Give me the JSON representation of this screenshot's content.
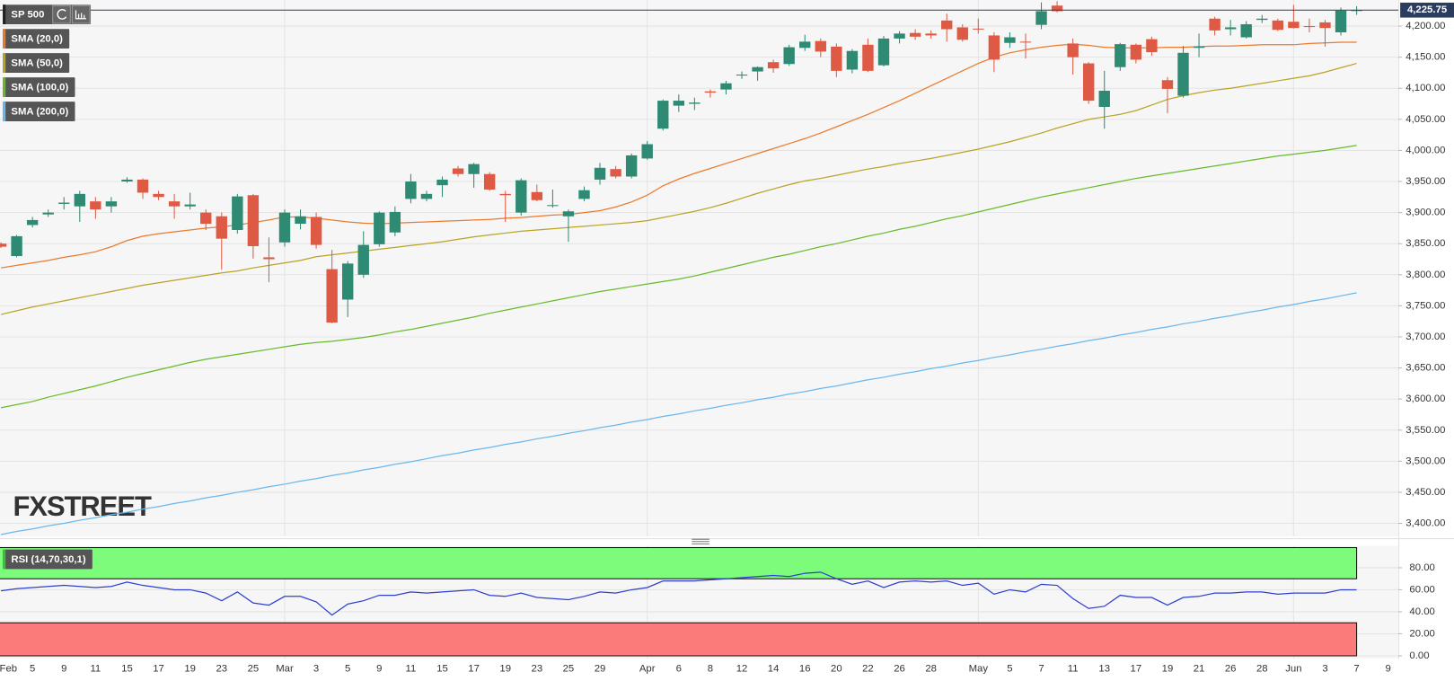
{
  "watermark": "FXSTREET",
  "chart_data": [
    {
      "type": "candlestick",
      "x": [
        "Feb",
        null,
        "5",
        null,
        "9",
        null,
        "11",
        null,
        "15",
        null,
        "17",
        null,
        "19",
        null,
        "23",
        null,
        "25",
        null,
        "Mar",
        null,
        "3",
        null,
        "5",
        null,
        "9",
        null,
        "11",
        null,
        "15",
        null,
        "17",
        null,
        "19",
        null,
        "23",
        null,
        "25",
        null,
        "29",
        null,
        null,
        "Apr",
        null,
        "6",
        null,
        "8",
        null,
        "12",
        null,
        "14",
        null,
        "16",
        null,
        "20",
        null,
        "22",
        null,
        "26",
        null,
        "28",
        null,
        null,
        "May",
        null,
        "5",
        null,
        "7",
        null,
        "11",
        null,
        "13",
        null,
        "17",
        null,
        "19",
        null,
        "21",
        null,
        "26",
        null,
        "28",
        null,
        "Jun",
        null,
        "3",
        null,
        "7",
        null,
        "9"
      ],
      "ylim": [
        3379,
        4242
      ],
      "yticks": [
        {
          "value": 3400,
          "label": "3,400.00"
        },
        {
          "value": 3450,
          "label": "3,450.00"
        },
        {
          "value": 3500,
          "label": "3,500.00"
        },
        {
          "value": 3550,
          "label": "3,550.00"
        },
        {
          "value": 3600,
          "label": "3,600.00"
        },
        {
          "value": 3650,
          "label": "3,650.00"
        },
        {
          "value": 3700,
          "label": "3,700.00"
        },
        {
          "value": 3750,
          "label": "3,750.00"
        },
        {
          "value": 3800,
          "label": "3,800.00"
        },
        {
          "value": 3850,
          "label": "3,850.00"
        },
        {
          "value": 3900,
          "label": "3,900.00"
        },
        {
          "value": 3950,
          "label": "3,950.00"
        },
        {
          "value": 4000,
          "label": "4,000.00"
        },
        {
          "value": 4050,
          "label": "4,050.00"
        },
        {
          "value": 4100,
          "label": "4,100.00"
        },
        {
          "value": 4150,
          "label": "4,150.00"
        },
        {
          "value": 4200,
          "label": "4,200.00"
        }
      ],
      "grid": true,
      "last_price": {
        "value": 4225.75,
        "label": "4,225.75"
      },
      "series": [
        {
          "name": "SP 500",
          "up_color": "#2f8a73",
          "down_color": "#df5a45",
          "open": [
            3850,
            3830,
            3880,
            3897,
            3914,
            3910,
            3918,
            3910,
            3950,
            3953,
            3930,
            3918,
            3910,
            3900,
            3894,
            3872,
            3928,
            3828,
            3852,
            3882,
            3893,
            3809,
            3760,
            3800,
            3849,
            3868,
            3922,
            3922,
            3944,
            3971,
            3962,
            3962,
            3930,
            3900,
            3933,
            3911,
            3894,
            3922,
            3953,
            3970,
            3958,
            3987,
            4035,
            4072,
            4075,
            4095,
            4098,
            4121,
            4127,
            4142,
            4139,
            4165,
            4176,
            4167,
            4130,
            4170,
            4137,
            4180,
            4189,
            4188,
            4209,
            4198,
            4196,
            4185,
            4173,
            4175,
            4202,
            4233,
            4172,
            4140,
            4070,
            4134,
            4170,
            4179,
            4113,
            4088,
            4165,
            4212,
            4195,
            4182,
            4210,
            4209,
            4207,
            4200,
            4206,
            4190,
            4225,
            null,
            null
          ],
          "high": [
            3852,
            3864,
            3893,
            3905,
            3925,
            3935,
            3925,
            3925,
            3957,
            3955,
            3935,
            3930,
            3932,
            3905,
            3900,
            3930,
            3930,
            3860,
            3905,
            3905,
            3900,
            3840,
            3822,
            3870,
            3902,
            3910,
            3962,
            3935,
            3958,
            3975,
            3980,
            3965,
            3935,
            3955,
            3945,
            3937,
            3905,
            3942,
            3980,
            3975,
            3995,
            4015,
            4082,
            4090,
            4085,
            4098,
            4112,
            4127,
            4135,
            4146,
            4170,
            4186,
            4180,
            4172,
            4163,
            4180,
            4184,
            4192,
            4195,
            4193,
            4220,
            4203,
            4212,
            4190,
            4190,
            4188,
            4238,
            4240,
            4180,
            4142,
            4128,
            4173,
            4172,
            4183,
            4118,
            4168,
            4188,
            4215,
            4210,
            4208,
            4218,
            4212,
            4234,
            4212,
            4210,
            4230,
            4232,
            null,
            null
          ],
          "low": [
            3843,
            3828,
            3876,
            3893,
            3905,
            3885,
            3890,
            3900,
            3948,
            3922,
            3920,
            3890,
            3905,
            3872,
            3808,
            3866,
            3826,
            3788,
            3845,
            3873,
            3842,
            3722,
            3732,
            3795,
            3845,
            3862,
            3915,
            3918,
            3925,
            3958,
            3940,
            3935,
            3885,
            3895,
            3918,
            3908,
            3853,
            3918,
            3945,
            3955,
            3955,
            3985,
            4032,
            4062,
            4065,
            4085,
            4090,
            4115,
            4112,
            4125,
            4136,
            4160,
            4150,
            4118,
            4124,
            4126,
            4135,
            4172,
            4178,
            4180,
            4175,
            4175,
            4188,
            4126,
            4165,
            4148,
            4195,
            4222,
            4122,
            4075,
            4035,
            4128,
            4140,
            4152,
            4060,
            4085,
            4150,
            4185,
            4185,
            4180,
            4205,
            4192,
            4196,
            4190,
            4167,
            4185,
            4218,
            null,
            null
          ],
          "close": [
            3845,
            3862,
            3888,
            3900,
            3916,
            3930,
            3905,
            3918,
            3953,
            3932,
            3925,
            3910,
            3913,
            3882,
            3858,
            3926,
            3846,
            3825,
            3900,
            3894,
            3848,
            3723,
            3818,
            3848,
            3900,
            3901,
            3950,
            3930,
            3953,
            3962,
            3978,
            3937,
            3928,
            3952,
            3920,
            3912,
            3902,
            3936,
            3972,
            3958,
            3992,
            4010,
            4080,
            4080,
            4077,
            4093,
            4108,
            4122,
            4134,
            4132,
            4166,
            4175,
            4159,
            4128,
            4160,
            4128,
            4180,
            4188,
            4183,
            4185,
            4195,
            4178,
            4195,
            4146,
            4182,
            4174,
            4224,
            4224,
            4150,
            4080,
            4096,
            4171,
            4146,
            4158,
            4099,
            4157,
            4167,
            4193,
            4198,
            4203,
            4212,
            4194,
            4197,
            4199,
            4197,
            4225,
            4225.75,
            null,
            null
          ]
        },
        {
          "name": "SMA (20,0)",
          "type": "line",
          "color": "#ec7a2c",
          "values": [
            3811,
            3815,
            3819,
            3823,
            3828,
            3832,
            3837,
            3845,
            3855,
            3862,
            3866,
            3869,
            3872,
            3875,
            3877,
            3880,
            3884,
            3888,
            3893,
            3893,
            3891,
            3888,
            3885,
            3883,
            3882,
            3883,
            3884,
            3885,
            3886,
            3887,
            3888,
            3889,
            3891,
            3892,
            3894,
            3896,
            3897,
            3900,
            3903,
            3909,
            3917,
            3928,
            3943,
            3954,
            3963,
            3971,
            3979,
            3987,
            3995,
            4003,
            4011,
            4019,
            4028,
            4038,
            4048,
            4058,
            4069,
            4080,
            4092,
            4104,
            4116,
            4128,
            4140,
            4150,
            4157,
            4162,
            4166,
            4169,
            4171,
            4169,
            4166,
            4165,
            4165,
            4165,
            4166,
            4166,
            4167,
            4168,
            4168,
            4169,
            4170,
            4170,
            4170,
            4172,
            4173,
            4174,
            4174,
            null,
            null
          ]
        },
        {
          "name": "SMA (50,0)",
          "type": "line",
          "color": "#b8a326",
          "values": [
            3736,
            3742,
            3748,
            3753,
            3758,
            3763,
            3768,
            3773,
            3778,
            3783,
            3787,
            3791,
            3795,
            3799,
            3803,
            3806,
            3811,
            3815,
            3819,
            3823,
            3829,
            3832,
            3835,
            3838,
            3841,
            3844,
            3847,
            3850,
            3853,
            3857,
            3861,
            3864,
            3867,
            3870,
            3872,
            3874,
            3876,
            3878,
            3880,
            3882,
            3884,
            3887,
            3892,
            3897,
            3902,
            3908,
            3915,
            3923,
            3931,
            3938,
            3945,
            3951,
            3955,
            3960,
            3965,
            3970,
            3974,
            3979,
            3983,
            3987,
            3992,
            3997,
            4002,
            4008,
            4014,
            4021,
            4028,
            4036,
            4043,
            4050,
            4054,
            4058,
            4064,
            4073,
            4082,
            4088,
            4093,
            4097,
            4100,
            4104,
            4108,
            4112,
            4116,
            4120,
            4126,
            4133,
            4140,
            null,
            null
          ]
        },
        {
          "name": "SMA (100,0)",
          "type": "line",
          "color": "#66bb2a",
          "values": [
            3586,
            3591,
            3596,
            3603,
            3609,
            3615,
            3621,
            3628,
            3635,
            3641,
            3647,
            3653,
            3659,
            3664,
            3668,
            3672,
            3676,
            3680,
            3684,
            3688,
            3691,
            3693,
            3696,
            3699,
            3703,
            3708,
            3712,
            3717,
            3722,
            3727,
            3732,
            3738,
            3743,
            3748,
            3753,
            3758,
            3763,
            3768,
            3773,
            3777,
            3781,
            3785,
            3789,
            3793,
            3798,
            3804,
            3810,
            3816,
            3822,
            3828,
            3833,
            3839,
            3845,
            3850,
            3856,
            3862,
            3867,
            3873,
            3878,
            3884,
            3890,
            3895,
            3901,
            3907,
            3913,
            3919,
            3925,
            3930,
            3935,
            3940,
            3945,
            3950,
            3955,
            3959,
            3963,
            3967,
            3971,
            3975,
            3979,
            3983,
            3987,
            3991,
            3994,
            3997,
            4000,
            4004,
            4008,
            null,
            null
          ]
        },
        {
          "name": "SMA (200,0)",
          "type": "line",
          "color": "#69b8ee",
          "values": [
            3382,
            3387,
            3391,
            3396,
            3400,
            3405,
            3409,
            3414,
            3418,
            3423,
            3427,
            3432,
            3436,
            3441,
            3445,
            3450,
            3454,
            3459,
            3463,
            3468,
            3472,
            3477,
            3481,
            3486,
            3490,
            3495,
            3499,
            3504,
            3509,
            3513,
            3518,
            3522,
            3527,
            3531,
            3536,
            3540,
            3545,
            3549,
            3554,
            3558,
            3563,
            3567,
            3572,
            3576,
            3581,
            3585,
            3590,
            3594,
            3599,
            3603,
            3608,
            3612,
            3617,
            3621,
            3626,
            3631,
            3635,
            3640,
            3644,
            3649,
            3653,
            3658,
            3662,
            3667,
            3671,
            3676,
            3680,
            3685,
            3689,
            3694,
            3698,
            3703,
            3707,
            3712,
            3716,
            3721,
            3725,
            3730,
            3734,
            3739,
            3743,
            3748,
            3752,
            3757,
            3761,
            3766,
            3771,
            null,
            null
          ]
        }
      ]
    },
    {
      "type": "line",
      "ylim": [
        0,
        100
      ],
      "yticks": [
        {
          "value": 0,
          "label": "0.00"
        },
        {
          "value": 20,
          "label": "20.00"
        },
        {
          "value": 40,
          "label": "40.00"
        },
        {
          "value": 60,
          "label": "60.00"
        },
        {
          "value": 80,
          "label": "80.00"
        }
      ],
      "grid": true,
      "overbought": 70,
      "overbought_color": "#7dfb7b",
      "oversold": 30,
      "oversold_color": "#fb7b7b",
      "series": [
        {
          "name": "RSI (14,70,30,1)",
          "color": "#2d3fd0",
          "values": [
            59,
            61,
            62,
            63,
            64,
            63,
            62,
            63,
            67,
            64,
            62,
            60,
            60,
            57,
            50,
            58,
            48,
            46,
            54,
            54,
            49,
            37,
            47,
            50,
            55,
            55,
            58,
            57,
            58,
            59,
            60,
            55,
            54,
            57,
            53,
            52,
            51,
            54,
            58,
            57,
            60,
            62,
            68,
            68,
            68,
            69,
            70,
            71,
            72,
            73,
            72,
            75,
            76,
            70,
            65,
            68,
            62,
            67,
            68,
            67,
            68,
            64,
            66,
            56,
            60,
            58,
            65,
            64,
            52,
            43,
            45,
            55,
            53,
            53,
            46,
            53,
            54,
            57,
            57,
            58,
            58,
            56,
            57,
            57,
            57,
            60,
            60,
            null,
            null
          ]
        }
      ]
    }
  ]
}
